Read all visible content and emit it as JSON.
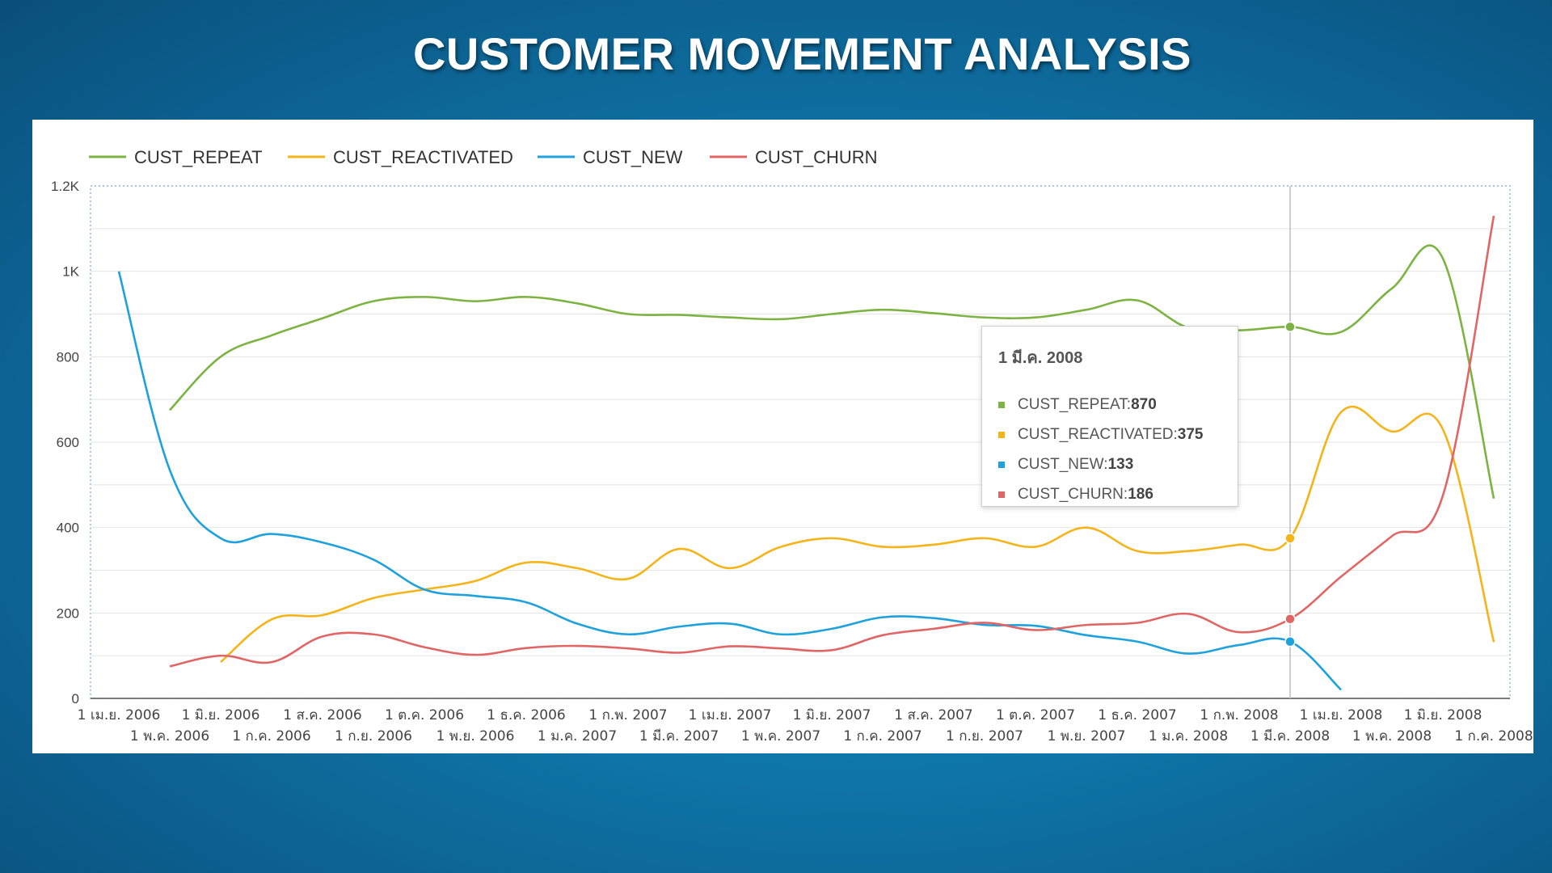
{
  "title": "CUSTOMER MOVEMENT ANALYSIS",
  "chart_data": {
    "type": "line",
    "title": "",
    "xlabel": "",
    "ylabel": "",
    "ylim": [
      0,
      1200
    ],
    "y_ticks": [
      {
        "value": 0,
        "label": "0"
      },
      {
        "value": 200,
        "label": "200"
      },
      {
        "value": 400,
        "label": "400"
      },
      {
        "value": 600,
        "label": "600"
      },
      {
        "value": 800,
        "label": "800"
      },
      {
        "value": 1000,
        "label": "1K"
      },
      {
        "value": 1200,
        "label": "1.2K"
      }
    ],
    "grid": true,
    "legend_position": "top-left",
    "x": [
      "2006-04-01",
      "2006-05-01",
      "2006-06-01",
      "2006-07-01",
      "2006-08-01",
      "2006-09-01",
      "2006-10-01",
      "2006-11-01",
      "2006-12-01",
      "2007-01-01",
      "2007-02-01",
      "2007-03-01",
      "2007-04-01",
      "2007-05-01",
      "2007-06-01",
      "2007-07-01",
      "2007-08-01",
      "2007-09-01",
      "2007-10-01",
      "2007-11-01",
      "2007-12-01",
      "2008-01-01",
      "2008-02-01",
      "2008-03-01",
      "2008-04-01",
      "2008-05-01",
      "2008-06-01",
      "2008-07-01"
    ],
    "x_tick_labels": [
      "1 เม.ย. 2006",
      "1 พ.ค. 2006",
      "1 มิ.ย. 2006",
      "1 ก.ค. 2006",
      "1 ส.ค. 2006",
      "1 ก.ย. 2006",
      "1 ต.ค. 2006",
      "1 พ.ย. 2006",
      "1 ธ.ค. 2006",
      "1 ม.ค. 2007",
      "1 ก.พ. 2007",
      "1 มี.ค. 2007",
      "1 เม.ย. 2007",
      "1 พ.ค. 2007",
      "1 มิ.ย. 2007",
      "1 ก.ค. 2007",
      "1 ส.ค. 2007",
      "1 ก.ย. 2007",
      "1 ต.ค. 2007",
      "1 พ.ย. 2007",
      "1 ธ.ค. 2007",
      "1 ม.ค. 2008",
      "1 ก.พ. 2008",
      "1 มี.ค. 2008",
      "1 เม.ย. 2008",
      "1 พ.ค. 2008",
      "1 มิ.ย. 2008",
      "1 ก.ค. 2008"
    ],
    "series": [
      {
        "name": "CUST_REPEAT",
        "color": "#7cb342",
        "points": [
          [
            "2006-05-01",
            675
          ],
          [
            "2006-06-01",
            800
          ],
          [
            "2006-07-01",
            850
          ],
          [
            "2006-08-01",
            890
          ],
          [
            "2006-09-01",
            930
          ],
          [
            "2006-10-01",
            940
          ],
          [
            "2006-11-01",
            930
          ],
          [
            "2006-12-01",
            940
          ],
          [
            "2007-01-01",
            925
          ],
          [
            "2007-02-01",
            900
          ],
          [
            "2007-03-01",
            898
          ],
          [
            "2007-04-01",
            892
          ],
          [
            "2007-05-01",
            888
          ],
          [
            "2007-06-01",
            900
          ],
          [
            "2007-07-01",
            910
          ],
          [
            "2007-08-01",
            902
          ],
          [
            "2007-09-01",
            892
          ],
          [
            "2007-10-01",
            892
          ],
          [
            "2007-11-01",
            910
          ],
          [
            "2007-12-01",
            932
          ],
          [
            "2008-01-01",
            868
          ],
          [
            "2008-02-01",
            862
          ],
          [
            "2008-03-01",
            870
          ],
          [
            "2008-04-01",
            858
          ],
          [
            "2008-05-01",
            960
          ],
          [
            "2008-06-01",
            1030
          ],
          [
            "2008-07-01",
            468
          ]
        ]
      },
      {
        "name": "CUST_REACTIVATED",
        "color": "#f4b41a",
        "points": [
          [
            "2006-06-01",
            85
          ],
          [
            "2006-07-01",
            185
          ],
          [
            "2006-08-01",
            195
          ],
          [
            "2006-09-01",
            235
          ],
          [
            "2006-10-01",
            255
          ],
          [
            "2006-11-01",
            275
          ],
          [
            "2006-12-01",
            318
          ],
          [
            "2007-01-01",
            305
          ],
          [
            "2007-02-01",
            280
          ],
          [
            "2007-03-01",
            350
          ],
          [
            "2007-04-01",
            305
          ],
          [
            "2007-05-01",
            355
          ],
          [
            "2007-06-01",
            375
          ],
          [
            "2007-07-01",
            355
          ],
          [
            "2007-08-01",
            360
          ],
          [
            "2007-09-01",
            375
          ],
          [
            "2007-10-01",
            355
          ],
          [
            "2007-11-01",
            400
          ],
          [
            "2007-12-01",
            345
          ],
          [
            "2008-01-01",
            345
          ],
          [
            "2008-02-01",
            360
          ],
          [
            "2008-03-01",
            375
          ],
          [
            "2008-04-01",
            670
          ],
          [
            "2008-05-01",
            625
          ],
          [
            "2008-06-01",
            630
          ],
          [
            "2008-07-01",
            132
          ]
        ]
      },
      {
        "name": "CUST_NEW",
        "color": "#1ea1dc",
        "points": [
          [
            "2006-04-01",
            1000
          ],
          [
            "2006-05-01",
            535
          ],
          [
            "2006-06-01",
            375
          ],
          [
            "2006-07-01",
            385
          ],
          [
            "2006-08-01",
            365
          ],
          [
            "2006-09-01",
            325
          ],
          [
            "2006-10-01",
            255
          ],
          [
            "2006-11-01",
            240
          ],
          [
            "2006-12-01",
            225
          ],
          [
            "2007-01-01",
            175
          ],
          [
            "2007-02-01",
            150
          ],
          [
            "2007-03-01",
            168
          ],
          [
            "2007-04-01",
            175
          ],
          [
            "2007-05-01",
            150
          ],
          [
            "2007-06-01",
            163
          ],
          [
            "2007-07-01",
            190
          ],
          [
            "2007-08-01",
            188
          ],
          [
            "2007-09-01",
            172
          ],
          [
            "2007-10-01",
            170
          ],
          [
            "2007-11-01",
            148
          ],
          [
            "2007-12-01",
            133
          ],
          [
            "2008-01-01",
            105
          ],
          [
            "2008-02-01",
            125
          ],
          [
            "2008-03-01",
            133
          ],
          [
            "2008-04-01",
            20
          ]
        ]
      },
      {
        "name": "CUST_CHURN",
        "color": "#e06666",
        "points": [
          [
            "2006-05-01",
            75
          ],
          [
            "2006-06-01",
            100
          ],
          [
            "2006-07-01",
            85
          ],
          [
            "2006-08-01",
            145
          ],
          [
            "2006-09-01",
            150
          ],
          [
            "2006-10-01",
            120
          ],
          [
            "2006-11-01",
            102
          ],
          [
            "2006-12-01",
            118
          ],
          [
            "2007-01-01",
            123
          ],
          [
            "2007-02-01",
            117
          ],
          [
            "2007-03-01",
            107
          ],
          [
            "2007-04-01",
            122
          ],
          [
            "2007-05-01",
            117
          ],
          [
            "2007-06-01",
            113
          ],
          [
            "2007-07-01",
            148
          ],
          [
            "2007-08-01",
            163
          ],
          [
            "2007-09-01",
            177
          ],
          [
            "2007-10-01",
            160
          ],
          [
            "2007-11-01",
            172
          ],
          [
            "2007-12-01",
            177
          ],
          [
            "2008-01-01",
            198
          ],
          [
            "2008-02-01",
            155
          ],
          [
            "2008-03-01",
            186
          ],
          [
            "2008-04-01",
            285
          ],
          [
            "2008-05-01",
            380
          ],
          [
            "2008-06-01",
            475
          ],
          [
            "2008-07-01",
            1130
          ]
        ]
      }
    ],
    "hover": {
      "date_index": 23,
      "date_label": "1 มี.ค. 2008",
      "rows": [
        {
          "series": "CUST_REPEAT",
          "label": "CUST_REPEAT: ",
          "value": "870",
          "color": "#7cb342"
        },
        {
          "series": "CUST_REACTIVATED",
          "label": "CUST_REACTIVATED: ",
          "value": "375",
          "color": "#f4b41a"
        },
        {
          "series": "CUST_NEW",
          "label": "CUST_NEW: ",
          "value": "133",
          "color": "#1ea1dc"
        },
        {
          "series": "CUST_CHURN",
          "label": "CUST_CHURN: ",
          "value": "186",
          "color": "#e06666"
        }
      ]
    }
  }
}
